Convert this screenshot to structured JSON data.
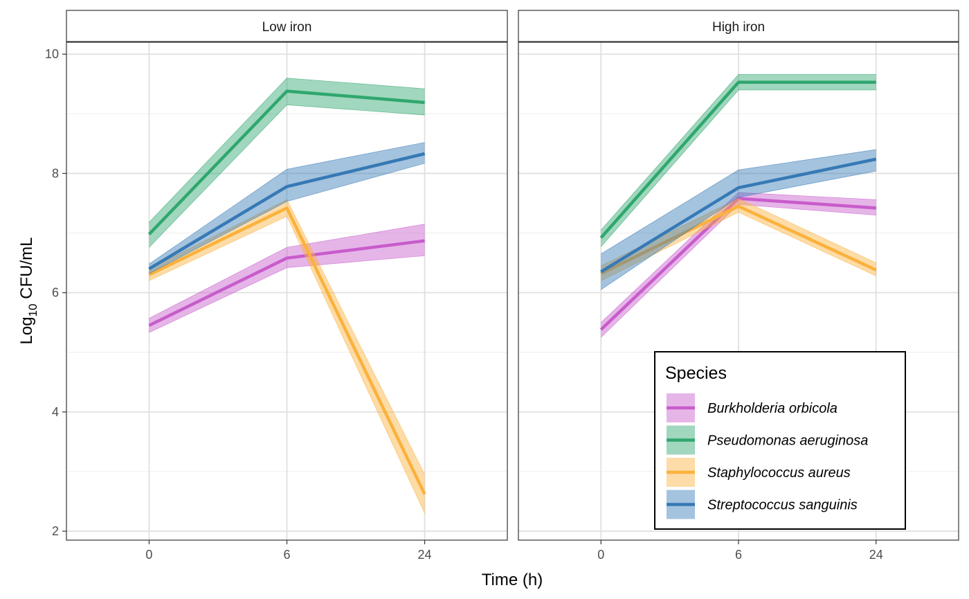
{
  "chart_data": {
    "type": "line",
    "xlabel": "Time (h)",
    "ylabel": {
      "prefix": "Log",
      "subscript": "10",
      "suffix": " CFU/mL"
    },
    "x_categories": [
      "0",
      "6",
      "24"
    ],
    "y_ticks": [
      2,
      4,
      6,
      8,
      10
    ],
    "ylim": [
      1.85,
      10.2
    ],
    "grid": true,
    "legend": {
      "title": "Species",
      "placement": "bottom-right (inside right panel)",
      "entries": [
        "Burkholderia orbicola",
        "Pseudomonas aeruginosa",
        "Staphylococcus aureus",
        "Streptococcus sanguinis"
      ]
    },
    "colors": {
      "Burkholderia orbicola": "#c85ccc",
      "Pseudomonas aeruginosa": "#2fa76e",
      "Staphylococcus aureus": "#fbb13c",
      "Streptococcus sanguinis": "#3679b5"
    },
    "panels": [
      {
        "label": "Low iron",
        "series": [
          {
            "name": "Burkholderia orbicola",
            "values": [
              5.45,
              6.58,
              6.87
            ],
            "lower": [
              5.33,
              6.42,
              6.62
            ],
            "upper": [
              5.57,
              6.76,
              7.15
            ]
          },
          {
            "name": "Pseudomonas aeruginosa",
            "values": [
              6.98,
              9.38,
              9.19
            ],
            "lower": [
              6.76,
              9.15,
              8.98
            ],
            "upper": [
              7.18,
              9.6,
              9.42
            ]
          },
          {
            "name": "Staphylococcus aureus",
            "values": [
              6.3,
              7.42,
              2.62
            ],
            "lower": [
              6.2,
              7.28,
              2.3
            ],
            "upper": [
              6.4,
              7.56,
              2.95
            ]
          },
          {
            "name": "Streptococcus sanguinis",
            "values": [
              6.4,
              7.78,
              8.33
            ],
            "lower": [
              6.32,
              7.53,
              8.17
            ],
            "upper": [
              6.48,
              8.07,
              8.52
            ]
          }
        ]
      },
      {
        "label": "High iron",
        "series": [
          {
            "name": "Burkholderia orbicola",
            "values": [
              5.38,
              7.58,
              7.42
            ],
            "lower": [
              5.25,
              7.48,
              7.3
            ],
            "upper": [
              5.5,
              7.68,
              7.56
            ]
          },
          {
            "name": "Pseudomonas aeruginosa",
            "values": [
              6.92,
              9.53,
              9.53
            ],
            "lower": [
              6.77,
              9.4,
              9.4
            ],
            "upper": [
              7.05,
              9.66,
              9.66
            ]
          },
          {
            "name": "Staphylococcus aureus",
            "values": [
              6.32,
              7.45,
              6.38
            ],
            "lower": [
              6.2,
              7.35,
              6.28
            ],
            "upper": [
              6.45,
              7.58,
              6.5
            ]
          },
          {
            "name": "Streptococcus sanguinis",
            "values": [
              6.35,
              7.76,
              8.24
            ],
            "lower": [
              6.05,
              7.6,
              8.04
            ],
            "upper": [
              6.65,
              8.06,
              8.4
            ]
          }
        ]
      }
    ]
  }
}
